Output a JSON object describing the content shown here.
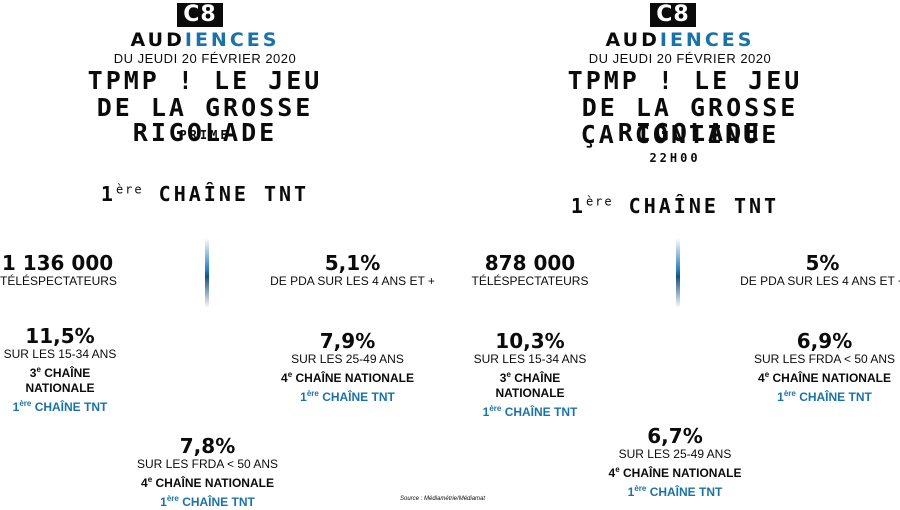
{
  "left": {
    "logo": "C8",
    "aud_a": "AUD",
    "aud_b": "IENCES",
    "date": "DU JEUDI 20 FÉVRIER 2020",
    "title1": "TPMP ! LE JEU",
    "title2": "DE LA GROSSE RIGOLADE",
    "subtitle": "PRIME",
    "rank_pre": "1",
    "rank_sup": "ère",
    "rank_post": "CHAÎNE TNT",
    "viewers": "1 136 000",
    "viewers_label": "TÉLÉSPECTATEURS",
    "pda": "5,1%",
    "pda_label": "DE PDA SUR LES 4 ANS ET +",
    "s1_val": "11,5%",
    "s1_label": "SUR LES 15-34 ANS",
    "s1_nat_pre": "3",
    "s1_nat_sup": "e",
    "s1_nat_post": "CHAÎNE NATIONALE",
    "s1_tnt_pre": "1",
    "s1_tnt_sup": "ère",
    "s1_tnt_post": "CHAÎNE TNT",
    "s2_val": "7,9%",
    "s2_label": "SUR LES 25-49 ANS",
    "s2_nat_pre": "4",
    "s2_nat_sup": "e",
    "s2_nat_post": "CHAÎNE NATIONALE",
    "s2_tnt_pre": "1",
    "s2_tnt_sup": "ère",
    "s2_tnt_post": "CHAÎNE TNT",
    "s3_val": "7,8%",
    "s3_label": "SUR LES FRDA < 50 ANS",
    "s3_nat_pre": "4",
    "s3_nat_sup": "e",
    "s3_nat_post": "CHAÎNE NATIONALE",
    "s3_tnt_pre": "1",
    "s3_tnt_sup": "ère",
    "s3_tnt_post": "CHAÎNE TNT"
  },
  "right": {
    "logo": "C8",
    "aud_a": "AUD",
    "aud_b": "IENCES",
    "date": "DU JEUDI 20 FÉVRIER 2020",
    "title1": "TPMP ! LE JEU",
    "title2": "DE LA GROSSE RIGOLADE",
    "title3": "ÇA CONTINUE",
    "subtitle": "22H00",
    "rank_pre": "1",
    "rank_sup": "ère",
    "rank_post": "CHAÎNE TNT",
    "viewers": "878 000",
    "viewers_label": "TÉLÉSPECTATEURS",
    "pda": "5%",
    "pda_label": "DE PDA SUR LES 4 ANS ET +",
    "s1_val": "10,3%",
    "s1_label": "SUR LES 15-34 ANS",
    "s1_nat_pre": "3",
    "s1_nat_sup": "e",
    "s1_nat_post": "CHAÎNE NATIONALE",
    "s1_tnt_pre": "1",
    "s1_tnt_sup": "ère",
    "s1_tnt_post": "CHAÎNE TNT",
    "s2_val": "6,9%",
    "s2_label": "SUR LES FRDA < 50 ANS",
    "s2_nat_pre": "4",
    "s2_nat_sup": "e",
    "s2_nat_post": "CHAÎNE NATIONALE",
    "s2_tnt_pre": "1",
    "s2_tnt_sup": "ère",
    "s2_tnt_post": "CHAÎNE TNT",
    "s3_val": "6,7%",
    "s3_label": "SUR LES 25-49 ANS",
    "s3_nat_pre": "4",
    "s3_nat_sup": "e",
    "s3_nat_post": "CHAÎNE NATIONALE",
    "s3_tnt_pre": "1",
    "s3_tnt_sup": "ère",
    "s3_tnt_post": "CHAÎNE TNT"
  },
  "source": "Source : Médiamétrie/Médiamat",
  "colors": {
    "accent": "#1a73a8",
    "text": "#0b0b0b",
    "background": "#ffffff"
  }
}
